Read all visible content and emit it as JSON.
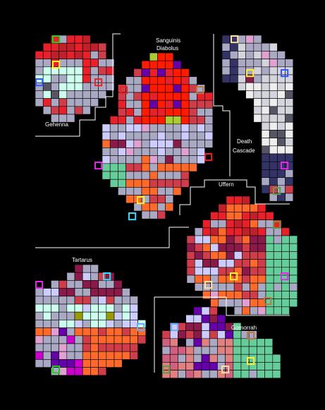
{
  "regions": [
    {
      "id": "gehenna",
      "label": "Gehenna"
    },
    {
      "id": "sanguinis",
      "label": "Sanguinis\nDiabolus"
    },
    {
      "id": "death",
      "label": "Death\nCascade"
    },
    {
      "id": "uffern",
      "label": "Uffern"
    },
    {
      "id": "tartarus",
      "label": "Tartarus"
    },
    {
      "id": "gomorrah",
      "label": "Gomorrah"
    }
  ],
  "palette": {
    "grey": "#a9a9c4",
    "lightgrey": "#d4d4dc",
    "red": "#e8202a",
    "brightred": "#ff1a00",
    "darkred": "#c0202a",
    "crimson": "#cf3c4a",
    "maroon": "#8a1a4a",
    "orange": "#ff6a2a",
    "mint": "#ccffee",
    "lavender": "#ccccff",
    "green": "#66cc99",
    "navy": "#333366",
    "black": "#0a0a14",
    "pink": "#e0a0d0",
    "olive": "#999900",
    "magenta": "#cc00cc",
    "purple": "#6600aa",
    "darkgreen": "#224422",
    "salmon": "#e08080",
    "yellowgreen": "#aacc33",
    "darkgrey": "#555566",
    "white": "#eeeeee",
    "rose": "#d06080"
  },
  "marker_colors": {
    "green": "#22cc22",
    "yellow": "#ffee33",
    "blue": "#3355ff",
    "red": "#ee2222",
    "cream": "#ffe0a0",
    "magenta": "#ee22ee",
    "olivegreen": "#669944",
    "cyan": "#33ddff",
    "sky": "#66aaff",
    "brown": "#bb7744"
  }
}
